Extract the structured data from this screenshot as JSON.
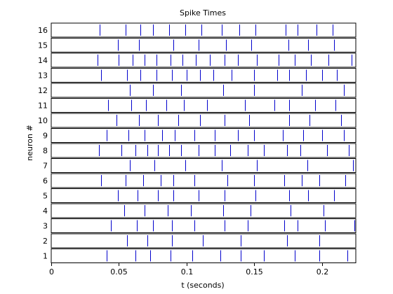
{
  "chart_data": {
    "type": "scatter",
    "title": "Spike Times",
    "xlabel": "t (seconds)",
    "ylabel": "neuron #",
    "xlim": [
      0,
      0.225
    ],
    "x_ticks": [
      "0",
      "0.05",
      "0.1",
      "0.15",
      "0.2"
    ],
    "x_tick_values": [
      0,
      0.05,
      0.1,
      0.15,
      0.2
    ],
    "neuron_labels": [
      "1",
      "2",
      "3",
      "4",
      "5",
      "6",
      "7",
      "8",
      "9",
      "10",
      "11",
      "12",
      "13",
      "14",
      "15",
      "16"
    ],
    "grid": false,
    "colors": {
      "spike": "#0000cc",
      "frame": "#000000",
      "background": "#ffffff"
    },
    "series": [
      {
        "neuron": 1,
        "spike_times": [
          0.041,
          0.062,
          0.073,
          0.088,
          0.104,
          0.125,
          0.14,
          0.157,
          0.18,
          0.198,
          0.219
        ]
      },
      {
        "neuron": 2,
        "spike_times": [
          0.056,
          0.071,
          0.089,
          0.112,
          0.14,
          0.174,
          0.198
        ]
      },
      {
        "neuron": 3,
        "spike_times": [
          0.044,
          0.063,
          0.075,
          0.089,
          0.106,
          0.128,
          0.145,
          0.172,
          0.182,
          0.202,
          0.224
        ]
      },
      {
        "neuron": 4,
        "spike_times": [
          0.054,
          0.069,
          0.086,
          0.103,
          0.127,
          0.147,
          0.177,
          0.201
        ]
      },
      {
        "neuron": 5,
        "spike_times": [
          0.049,
          0.064,
          0.079,
          0.09,
          0.109,
          0.128,
          0.151,
          0.176,
          0.19,
          0.209
        ]
      },
      {
        "neuron": 6,
        "spike_times": [
          0.037,
          0.055,
          0.068,
          0.081,
          0.09,
          0.106,
          0.13,
          0.15,
          0.172,
          0.185,
          0.198,
          0.217
        ]
      },
      {
        "neuron": 7,
        "spike_times": [
          0.058,
          0.076,
          0.099,
          0.126,
          0.152,
          0.189,
          0.223
        ]
      },
      {
        "neuron": 8,
        "spike_times": [
          0.035,
          0.052,
          0.062,
          0.071,
          0.079,
          0.087,
          0.096,
          0.109,
          0.121,
          0.132,
          0.145,
          0.157,
          0.174,
          0.184,
          0.204,
          0.22
        ]
      },
      {
        "neuron": 9,
        "spike_times": [
          0.041,
          0.057,
          0.069,
          0.082,
          0.091,
          0.106,
          0.121,
          0.138,
          0.15,
          0.171,
          0.186,
          0.2,
          0.216
        ]
      },
      {
        "neuron": 10,
        "spike_times": [
          0.048,
          0.065,
          0.079,
          0.094,
          0.11,
          0.128,
          0.146,
          0.176,
          0.191,
          0.214
        ]
      },
      {
        "neuron": 11,
        "spike_times": [
          0.042,
          0.059,
          0.07,
          0.085,
          0.098,
          0.115,
          0.143,
          0.165,
          0.176,
          0.195,
          0.21
        ]
      },
      {
        "neuron": 12,
        "spike_times": [
          0.058,
          0.075,
          0.096,
          0.127,
          0.15,
          0.185,
          0.216
        ]
      },
      {
        "neuron": 13,
        "spike_times": [
          0.037,
          0.056,
          0.066,
          0.078,
          0.089,
          0.1,
          0.11,
          0.12,
          0.133,
          0.15,
          0.167,
          0.176,
          0.188,
          0.2,
          0.211
        ]
      },
      {
        "neuron": 14,
        "spike_times": [
          0.034,
          0.05,
          0.06,
          0.069,
          0.078,
          0.088,
          0.097,
          0.107,
          0.117,
          0.128,
          0.138,
          0.152,
          0.168,
          0.18,
          0.192,
          0.205,
          0.222
        ]
      },
      {
        "neuron": 15,
        "spike_times": [
          0.049,
          0.065,
          0.09,
          0.109,
          0.129,
          0.148,
          0.175,
          0.19,
          0.209
        ]
      },
      {
        "neuron": 16,
        "spike_times": [
          0.036,
          0.055,
          0.066,
          0.075,
          0.087,
          0.099,
          0.111,
          0.126,
          0.139,
          0.151,
          0.173,
          0.182,
          0.196,
          0.208
        ]
      }
    ]
  }
}
